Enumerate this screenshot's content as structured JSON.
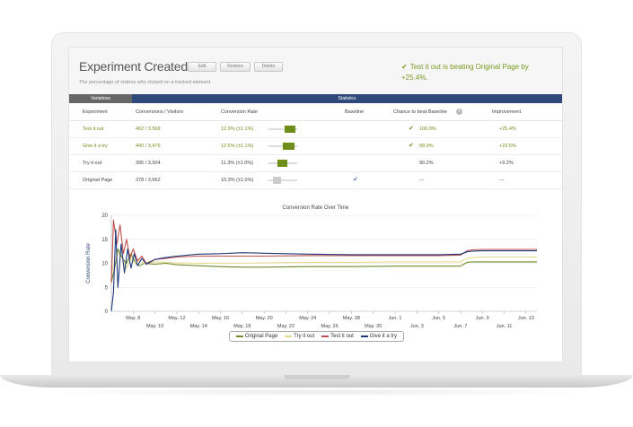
{
  "header": {
    "title": "Experiment Created",
    "buttons": [
      "Edit",
      "Restore",
      "Delete"
    ],
    "subtitle": "The percentage of visitors who clicked on a tracked element.",
    "winner_message": "Test it out is beating Original Page by +25.4%."
  },
  "tabs": {
    "variations": "Variations",
    "statistics": "Statistics"
  },
  "table": {
    "columns": [
      "Experiment",
      "Conversions / Visitors",
      "Conversion Rate",
      "Baseline",
      "Chance to beat Baseline",
      "Improvement"
    ],
    "rows": [
      {
        "name": "Test it out",
        "conv": "462 / 3,568",
        "rate": "12.9% (±1.1%)",
        "baseline": "",
        "chance": "100.0%",
        "improvement": "+25.4%",
        "winner": true,
        "ci_low": 0.55,
        "ci_high": 0.95
      },
      {
        "name": "Give it a try",
        "conv": "440 / 3,479",
        "rate": "12.6% (±1.1%)",
        "baseline": "",
        "chance": "99.9%",
        "improvement": "+22.5%",
        "winner": true,
        "ci_low": 0.5,
        "ci_high": 0.9
      },
      {
        "name": "Try it out",
        "conv": "395 / 3,504",
        "rate": "11.3% (±1.0%)",
        "baseline": "",
        "chance": "90.2%",
        "improvement": "+9.2%",
        "winner": false,
        "ci_low": 0.3,
        "ci_high": 0.65
      },
      {
        "name": "Original Page",
        "conv": "378 / 3,662",
        "rate": "10.3% (±1.0%)",
        "baseline": "check",
        "chance": "---",
        "improvement": "---",
        "winner": false,
        "ci_low": 0.15,
        "ci_high": 0.45
      }
    ]
  },
  "colors": {
    "original": "#6f8a2a",
    "try": "#e8d98a",
    "test": "#c0504d",
    "give": "#1f3a7a",
    "accent": "#7a9a1e",
    "tab_bg": "#2f4a7a"
  },
  "chart_data": {
    "type": "line",
    "title": "Conversion Rate Over Time",
    "ylabel": "Conversion Rate",
    "xlabel": "",
    "ylim": [
      0,
      20
    ],
    "yticks": [
      0,
      5,
      10,
      15,
      20
    ],
    "xlim": [
      6,
      45
    ],
    "xticks": [
      {
        "x": 8,
        "label": "May. 8",
        "row": 0
      },
      {
        "x": 10,
        "label": "May. 10",
        "row": 1
      },
      {
        "x": 12,
        "label": "May. 12",
        "row": 0
      },
      {
        "x": 14,
        "label": "May. 14",
        "row": 1
      },
      {
        "x": 16,
        "label": "May. 16",
        "row": 0
      },
      {
        "x": 18,
        "label": "May. 18",
        "row": 1
      },
      {
        "x": 20,
        "label": "May. 20",
        "row": 0
      },
      {
        "x": 22,
        "label": "May. 22",
        "row": 1
      },
      {
        "x": 24,
        "label": "May. 24",
        "row": 0
      },
      {
        "x": 26,
        "label": "May. 26",
        "row": 1
      },
      {
        "x": 28,
        "label": "May. 28",
        "row": 0
      },
      {
        "x": 30,
        "label": "May. 30",
        "row": 1
      },
      {
        "x": 32,
        "label": "Jun. 1",
        "row": 0
      },
      {
        "x": 34,
        "label": "Jun. 3",
        "row": 1
      },
      {
        "x": 36,
        "label": "Jun. 5",
        "row": 0
      },
      {
        "x": 38,
        "label": "Jun. 7",
        "row": 1
      },
      {
        "x": 40,
        "label": "Jun. 9",
        "row": 0
      },
      {
        "x": 42,
        "label": "Jun. 11",
        "row": 1
      },
      {
        "x": 44,
        "label": "Jun. 13",
        "row": 0
      }
    ],
    "series": [
      {
        "name": "Original Page",
        "x": [
          6,
          6.3,
          6.6,
          7,
          7.4,
          7.8,
          8.2,
          8.6,
          9,
          10,
          11,
          12,
          14,
          16,
          18,
          20,
          24,
          28,
          32,
          36,
          38,
          38.6,
          39,
          40,
          45
        ],
        "y": [
          6,
          9,
          13,
          11,
          10,
          12,
          10,
          9.5,
          10,
          9.8,
          10,
          9.7,
          9.5,
          9.3,
          9.2,
          9.2,
          9.3,
          9.3,
          9.4,
          9.4,
          9.4,
          10.2,
          10.3,
          10.3,
          10.3
        ]
      },
      {
        "name": "Try it out",
        "x": [
          6,
          6.3,
          6.6,
          7,
          7.4,
          7.8,
          8.2,
          8.6,
          9,
          10,
          11,
          12,
          14,
          16,
          18,
          20,
          24,
          28,
          32,
          36,
          38,
          38.6,
          39,
          40,
          45
        ],
        "y": [
          8,
          10,
          12,
          11,
          9,
          11,
          10,
          10.5,
          10,
          10.3,
          10.2,
          10.1,
          10,
          10,
          10,
          10.1,
          10.2,
          10.2,
          10.3,
          10.3,
          10.3,
          11,
          11.2,
          11.3,
          11.3
        ]
      },
      {
        "name": "Test it out",
        "x": [
          6,
          6.2,
          6.5,
          6.8,
          7.1,
          7.4,
          7.7,
          8,
          8.4,
          8.8,
          9.2,
          10,
          11,
          12,
          14,
          16,
          18,
          20,
          24,
          28,
          32,
          36,
          38,
          38.6,
          39,
          40,
          45
        ],
        "y": [
          6,
          19,
          14,
          18,
          12,
          15,
          11,
          13,
          10.5,
          11.5,
          10,
          10.8,
          11,
          11.3,
          11.5,
          11.5,
          11.5,
          11.5,
          11.6,
          11.6,
          11.6,
          11.6,
          11.7,
          12.6,
          12.8,
          12.9,
          12.9
        ]
      },
      {
        "name": "Give it a try",
        "x": [
          6,
          6.2,
          6.4,
          6.6,
          6.9,
          7.2,
          7.5,
          7.8,
          8.1,
          8.4,
          8.8,
          9.2,
          10,
          11,
          12,
          14,
          16,
          18,
          20,
          24,
          28,
          32,
          36,
          38,
          38.6,
          39,
          40,
          45
        ],
        "y": [
          0,
          4,
          17,
          5,
          14,
          8,
          13,
          9,
          12,
          9.5,
          11,
          9.8,
          10.8,
          11.2,
          11.5,
          11.9,
          12,
          12.2,
          12.1,
          11.9,
          11.8,
          11.8,
          11.8,
          11.9,
          12.4,
          12.5,
          12.6,
          12.6
        ]
      }
    ]
  }
}
